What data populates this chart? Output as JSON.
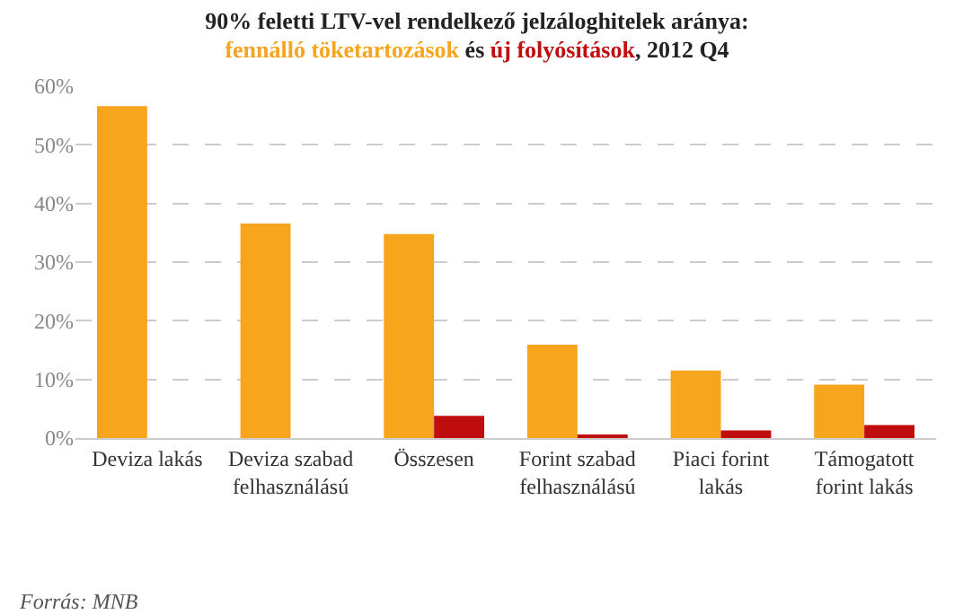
{
  "chart_data": {
    "type": "bar",
    "title": "90% feletti LTV-vel rendelkező jelzáloghitelek aránya:",
    "subtitle": ", 2012 Q4",
    "categories": [
      "Deviza lakás",
      "Deviza szabad felhasználású",
      "Összesen",
      "Forint szabad felhasználású",
      "Piaci forint lakás",
      "Támogatott forint lakás"
    ],
    "series": [
      {
        "name": "fennálló töketartozások",
        "color": "#f7a51d",
        "values": [
          56.6,
          36.6,
          34.8,
          15.9,
          11.5,
          9.1
        ]
      },
      {
        "name": "új folyósítások",
        "color": "#c00d0d",
        "values": [
          null,
          null,
          3.8,
          0.6,
          1.3,
          2.2
        ]
      }
    ],
    "ylim": [
      0,
      60
    ],
    "yticks": [
      {
        "value": 0,
        "label": "0%"
      },
      {
        "value": 10,
        "label": "10%"
      },
      {
        "value": 20,
        "label": "20%"
      },
      {
        "value": 30,
        "label": "30%"
      },
      {
        "value": 40,
        "label": "40%"
      },
      {
        "value": 50,
        "label": "50%"
      },
      {
        "value": 60,
        "label": "60%"
      }
    ],
    "grid": "y",
    "legend": "top",
    "annotations": [
      "és",
      "Forrás: MNB"
    ]
  }
}
